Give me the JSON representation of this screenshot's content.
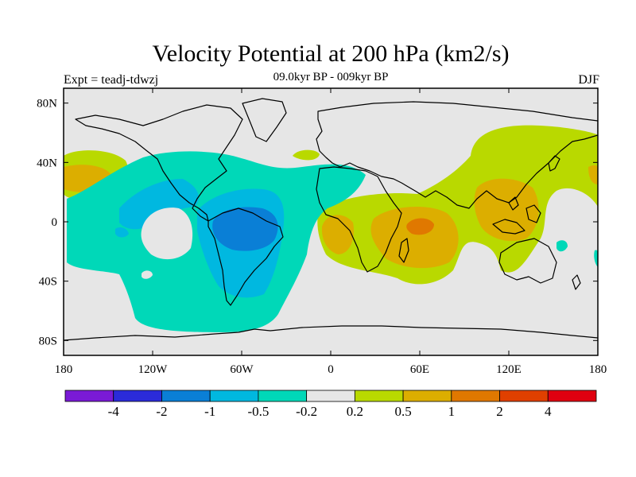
{
  "header": {
    "title": "Velocity Potential at 200 hPa (km2/s)",
    "subtitle": "09.0kyr BP - 009kyr BP",
    "left": "Expt = teadj-tdwzj",
    "right": "DJF"
  },
  "axes": {
    "x_ticks": [
      "180",
      "120W",
      "60W",
      "0",
      "60E",
      "120E",
      "180"
    ],
    "y_ticks": [
      "80N",
      "40N",
      "0",
      "40S",
      "80S"
    ]
  },
  "colorbar": {
    "colors": [
      "#7a1ad6",
      "#2b2bd9",
      "#0a7fd6",
      "#00b8e0",
      "#00d8b8",
      "#e6e6e6",
      "#b9d900",
      "#dcae00",
      "#e07800",
      "#e04000",
      "#e00010"
    ],
    "labels": [
      "-4",
      "-2",
      "-1",
      "-0.5",
      "-0.2",
      "0.2",
      "0.5",
      "1",
      "2",
      "4"
    ]
  },
  "map": {
    "background_color": "#e6e6e6",
    "fields": {
      "neg1": "#00d8b8",
      "neg2": "#00b8e0",
      "neg3": "#0a7fd6",
      "pos1": "#b9d900",
      "pos2": "#dcae00",
      "pos3": "#e07800"
    }
  }
}
